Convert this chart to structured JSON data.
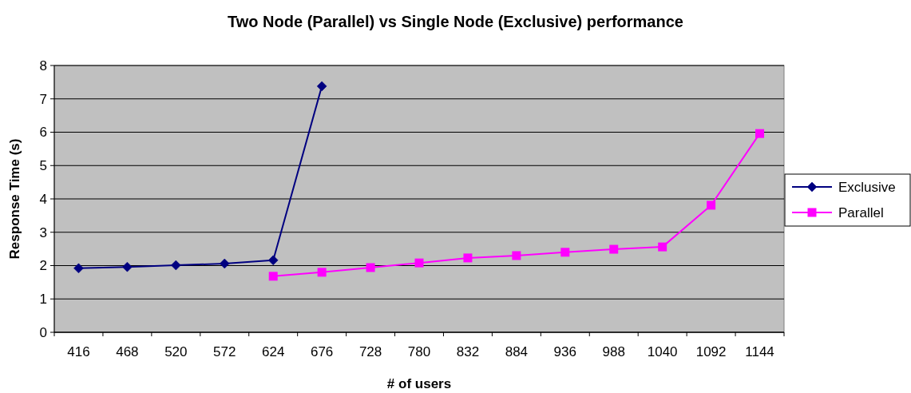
{
  "chart_data": {
    "type": "line",
    "title": "Two Node (Parallel) vs Single Node (Exclusive) performance",
    "xlabel": "# of users",
    "ylabel": "Response Time (s)",
    "categories": [
      "416",
      "468",
      "520",
      "572",
      "624",
      "676",
      "728",
      "780",
      "832",
      "884",
      "936",
      "988",
      "1040",
      "1092",
      "1144"
    ],
    "series": [
      {
        "name": "Exclusive",
        "color": "#000080",
        "marker": "diamond",
        "values": [
          1.92,
          1.96,
          2.01,
          2.06,
          2.16,
          7.38,
          null,
          null,
          null,
          null,
          null,
          null,
          null,
          null,
          null
        ]
      },
      {
        "name": "Parallel",
        "color": "#ff00ff",
        "marker": "square",
        "values": [
          null,
          null,
          null,
          null,
          1.68,
          1.8,
          1.94,
          2.08,
          2.23,
          2.3,
          2.4,
          2.49,
          2.56,
          3.81,
          5.96
        ]
      }
    ],
    "ylim": [
      0,
      8
    ],
    "yticks": [
      0,
      1,
      2,
      3,
      4,
      5,
      6,
      7,
      8
    ],
    "grid": "y",
    "legend": "right"
  }
}
